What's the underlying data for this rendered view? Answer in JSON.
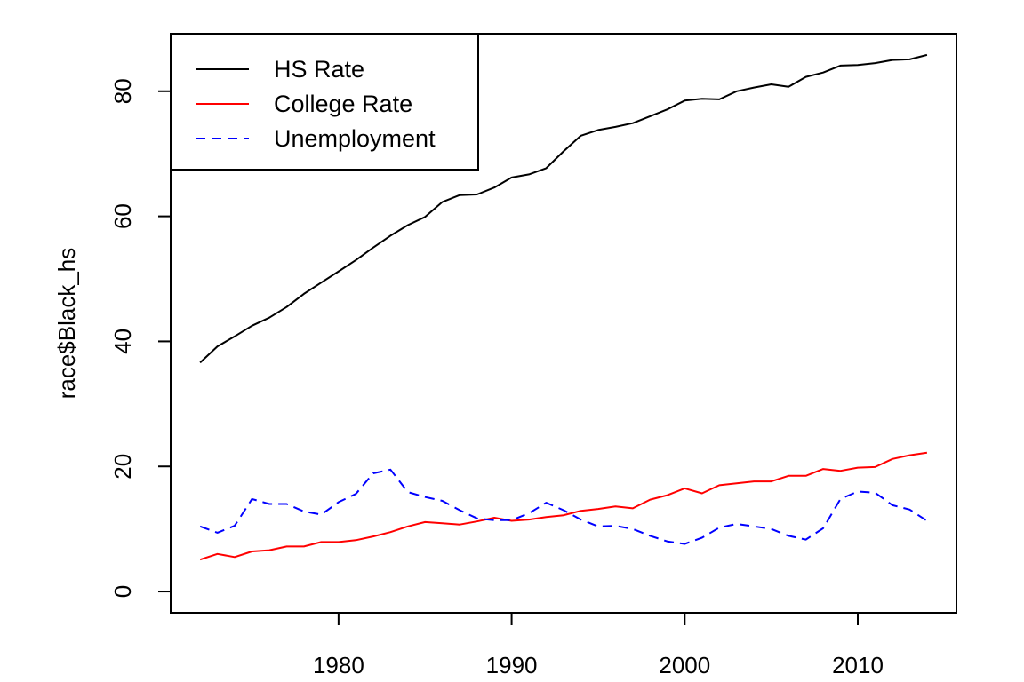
{
  "chart_data": {
    "type": "line",
    "title": "",
    "xlabel": "",
    "ylabel": "race$Black_hs",
    "xlim": [
      1970.3,
      2015.7
    ],
    "ylim": [
      -3.4,
      89.2
    ],
    "xticks": [
      1980,
      1990,
      2000,
      2010
    ],
    "yticks": [
      0,
      20,
      40,
      60,
      80
    ],
    "grid": false,
    "legend_position": "top-left",
    "x": [
      1972,
      1973,
      1974,
      1975,
      1976,
      1977,
      1978,
      1979,
      1980,
      1981,
      1982,
      1983,
      1984,
      1985,
      1986,
      1987,
      1988,
      1989,
      1990,
      1991,
      1992,
      1993,
      1994,
      1995,
      1996,
      1997,
      1998,
      1999,
      2000,
      2001,
      2002,
      2003,
      2004,
      2005,
      2006,
      2007,
      2008,
      2009,
      2010,
      2011,
      2012,
      2013,
      2014
    ],
    "series": [
      {
        "name": "HS Rate",
        "color": "#000000",
        "dash": "solid",
        "values": [
          36.6,
          39.2,
          40.8,
          42.5,
          43.8,
          45.5,
          47.6,
          49.4,
          51.2,
          53.0,
          55.0,
          56.9,
          58.6,
          59.9,
          62.3,
          63.4,
          63.5,
          64.6,
          66.2,
          66.7,
          67.7,
          70.4,
          72.9,
          73.8,
          74.3,
          74.9,
          76.0,
          77.1,
          78.5,
          78.8,
          78.7,
          80.0,
          80.6,
          81.1,
          80.7,
          82.3,
          83.0,
          84.1,
          84.2,
          84.5,
          85.0,
          85.1,
          85.8
        ]
      },
      {
        "name": "College Rate",
        "color": "#ff0000",
        "dash": "solid",
        "values": [
          5.1,
          6.0,
          5.5,
          6.4,
          6.6,
          7.2,
          7.2,
          7.9,
          7.9,
          8.2,
          8.8,
          9.5,
          10.4,
          11.1,
          10.9,
          10.7,
          11.2,
          11.8,
          11.3,
          11.5,
          11.9,
          12.2,
          12.9,
          13.2,
          13.6,
          13.3,
          14.7,
          15.4,
          16.5,
          15.7,
          17.0,
          17.3,
          17.6,
          17.6,
          18.5,
          18.5,
          19.6,
          19.3,
          19.8,
          19.9,
          21.2,
          21.8,
          22.2
        ]
      },
      {
        "name": "Unemployment",
        "color": "#0000ff",
        "dash": "dashed",
        "values": [
          10.4,
          9.4,
          10.5,
          14.8,
          14.0,
          14.0,
          12.8,
          12.3,
          14.3,
          15.6,
          18.9,
          19.5,
          15.9,
          15.1,
          14.5,
          13.0,
          11.7,
          11.4,
          11.4,
          12.5,
          14.2,
          13.0,
          11.5,
          10.4,
          10.5,
          10.0,
          8.9,
          8.0,
          7.6,
          8.6,
          10.2,
          10.8,
          10.4,
          10.0,
          8.9,
          8.3,
          10.1,
          14.8,
          16.0,
          15.8,
          13.8,
          13.1,
          11.3
        ]
      }
    ]
  }
}
